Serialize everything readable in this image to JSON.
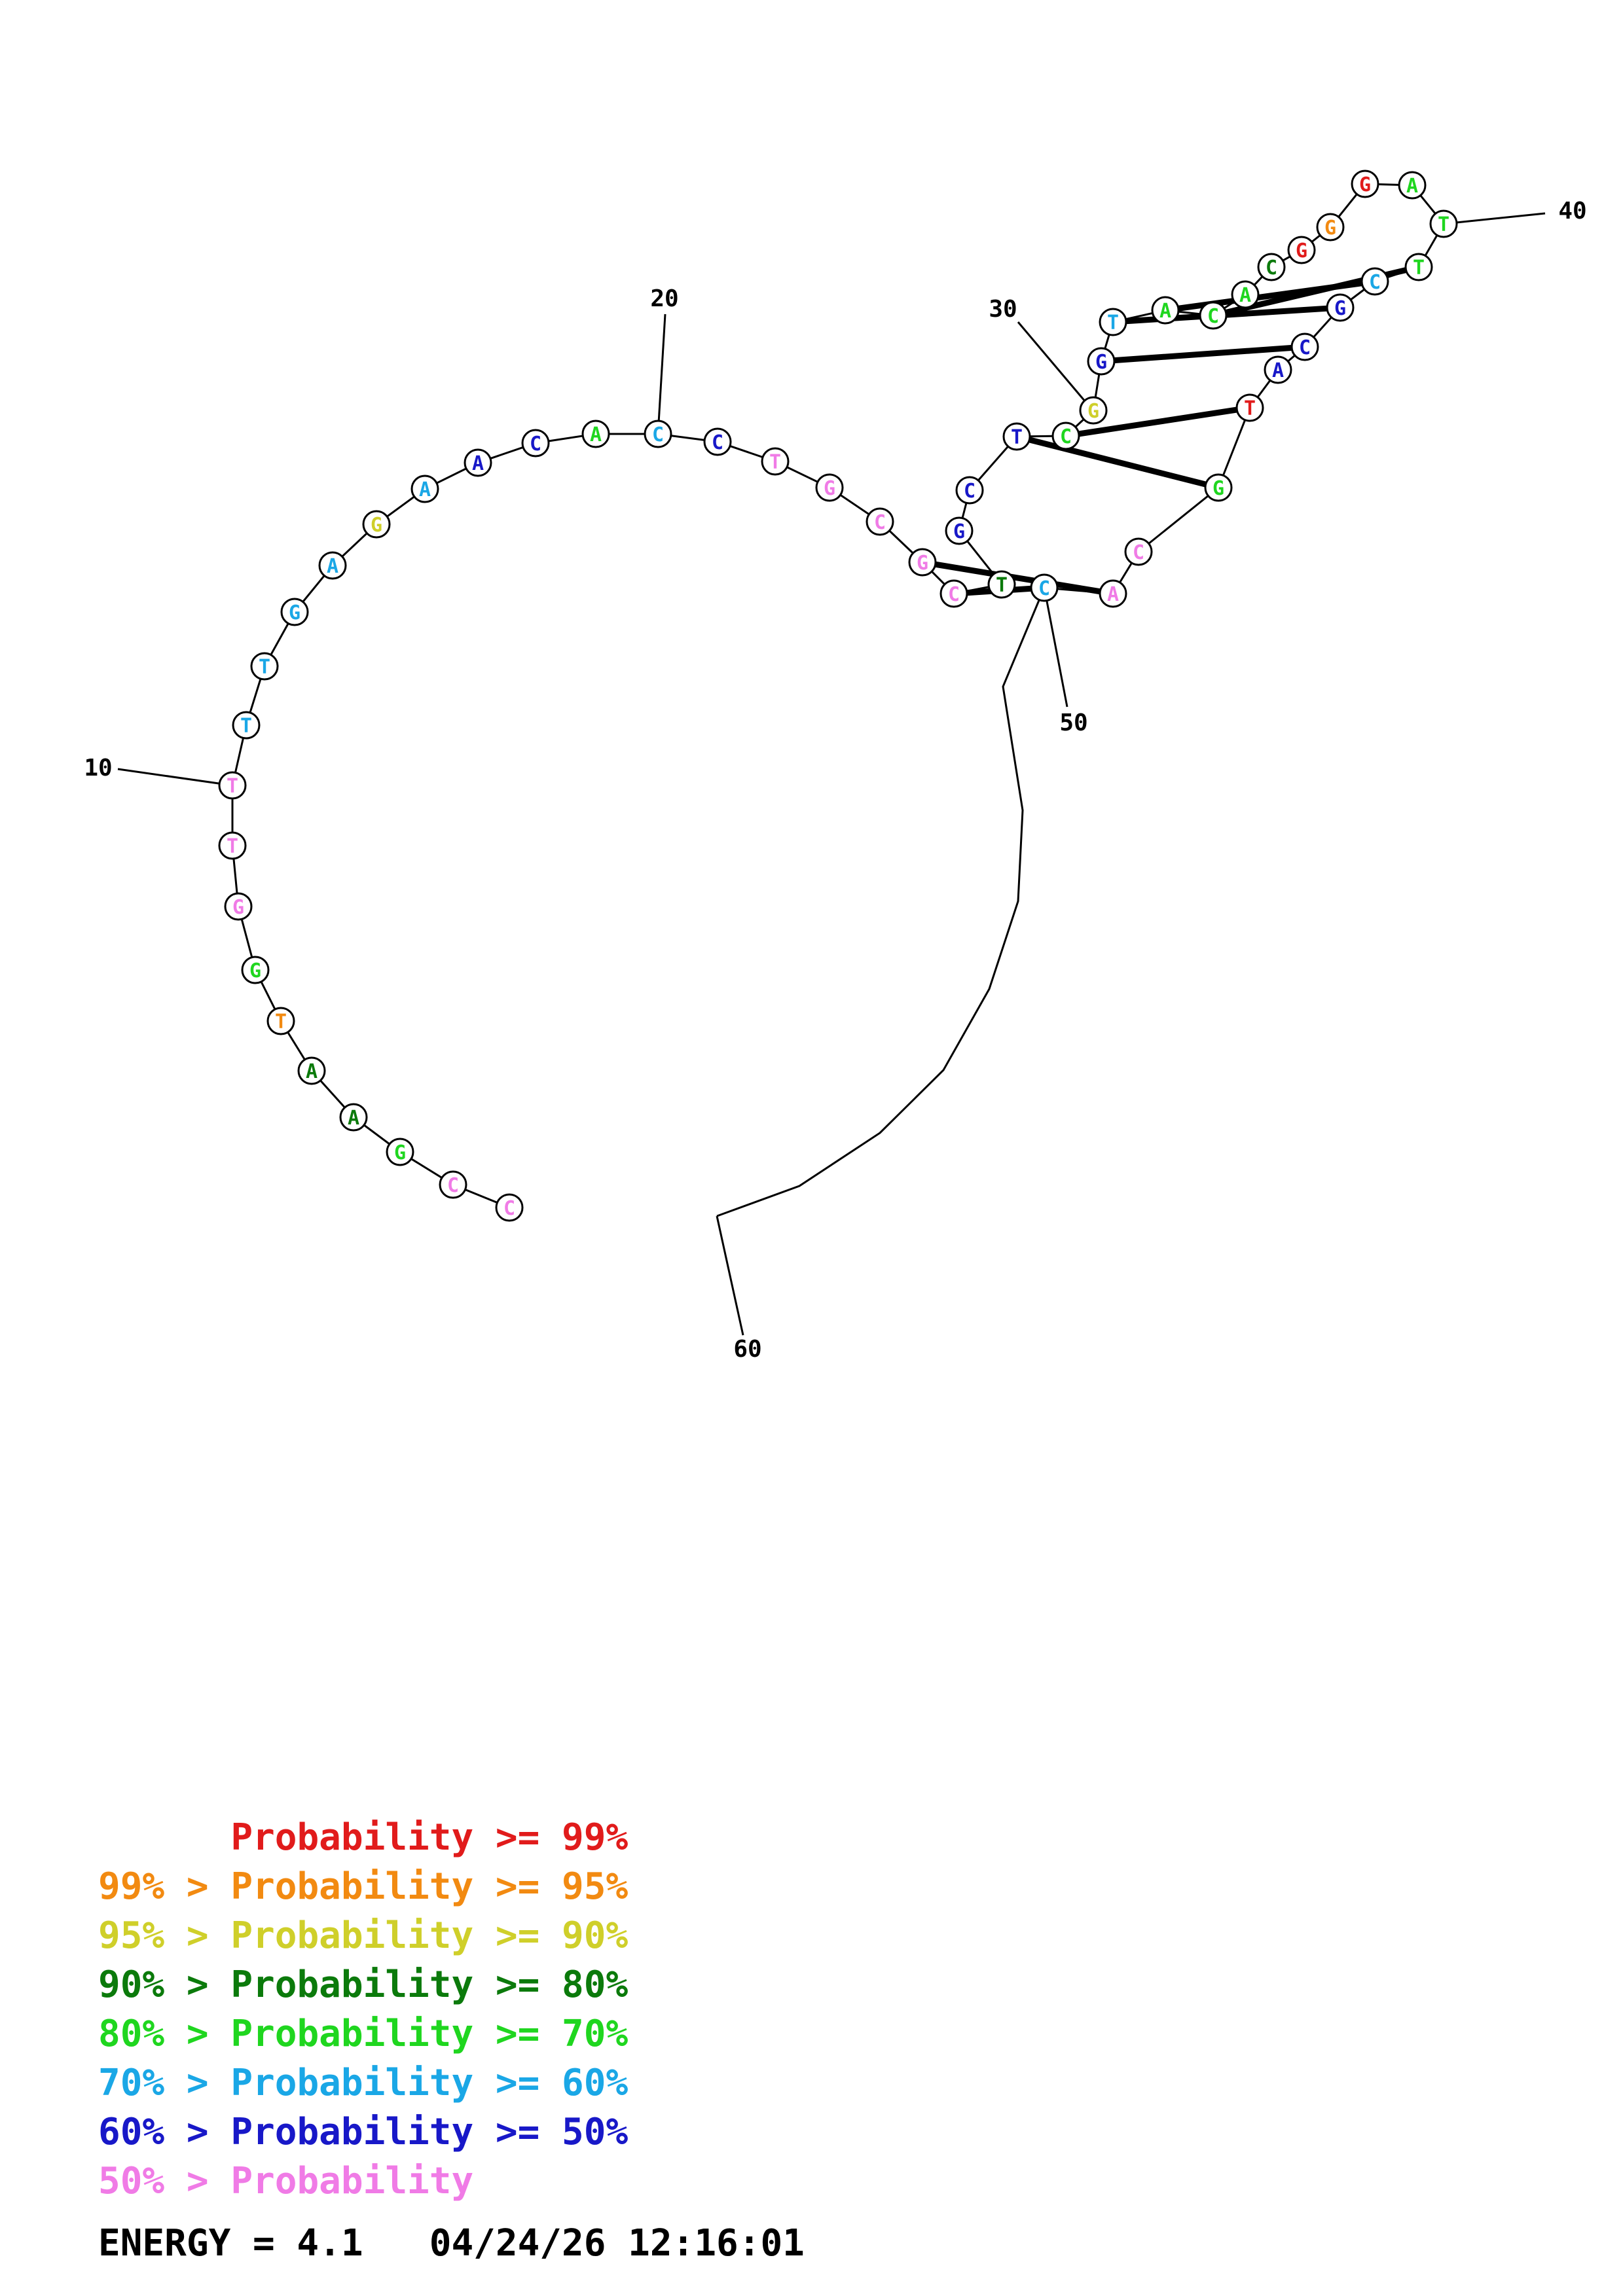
{
  "diagram": {
    "sequence": [
      "C",
      "C",
      "G",
      "A",
      "A",
      "T",
      "G",
      "G",
      "T",
      "T",
      "T",
      "T",
      "G",
      "A",
      "G",
      "A",
      "A",
      "C",
      "A",
      "C",
      "C",
      "T",
      "G",
      "C",
      "G",
      "C",
      "T",
      "G",
      "C",
      "T",
      "C",
      "G",
      "G",
      "T",
      "A",
      "C",
      "A",
      "C",
      "G",
      "G",
      "G",
      "A",
      "T",
      "T",
      "C",
      "G",
      "C",
      "A",
      "T",
      "G",
      "C",
      "A",
      "C"
    ],
    "colors": {
      "red": "#e11b1b",
      "orange": "#f28a11",
      "yellow": "#cfcf2a",
      "darkgreen": "#0b7a0b",
      "green": "#1fd61f",
      "cyan": "#1aa7e6",
      "blue": "#1818c8",
      "pink": "#f07be6"
    },
    "position_labels": [
      "10",
      "20",
      "30",
      "40",
      "50",
      "60"
    ],
    "base_pairs": 8
  },
  "legend": [
    {
      "prefix": "",
      "arrow": "",
      "label": "Probability",
      "op": ">=",
      "value": "99%",
      "color": "#e11b1b"
    },
    {
      "prefix": "99%",
      "arrow": ">",
      "label": "Probability",
      "op": ">=",
      "value": "95%",
      "color": "#f28a11"
    },
    {
      "prefix": "95%",
      "arrow": ">",
      "label": "Probability",
      "op": ">=",
      "value": "90%",
      "color": "#cfcf2a"
    },
    {
      "prefix": "90%",
      "arrow": ">",
      "label": "Probability",
      "op": ">=",
      "value": "80%",
      "color": "#0b7a0b"
    },
    {
      "prefix": "80%",
      "arrow": ">",
      "label": "Probability",
      "op": ">=",
      "value": "70%",
      "color": "#1fd61f"
    },
    {
      "prefix": "70%",
      "arrow": ">",
      "label": "Probability",
      "op": ">=",
      "value": "60%",
      "color": "#1aa7e6"
    },
    {
      "prefix": "60%",
      "arrow": ">",
      "label": "Probability",
      "op": ">=",
      "value": "50%",
      "color": "#1818c8"
    },
    {
      "prefix": "50%",
      "arrow": ">",
      "label": "Probability",
      "op": "",
      "value": "",
      "color": "#f07be6"
    }
  ],
  "footer": {
    "energy": "ENERGY = 4.1",
    "timestamp": "04/24/26 12:16:01"
  }
}
